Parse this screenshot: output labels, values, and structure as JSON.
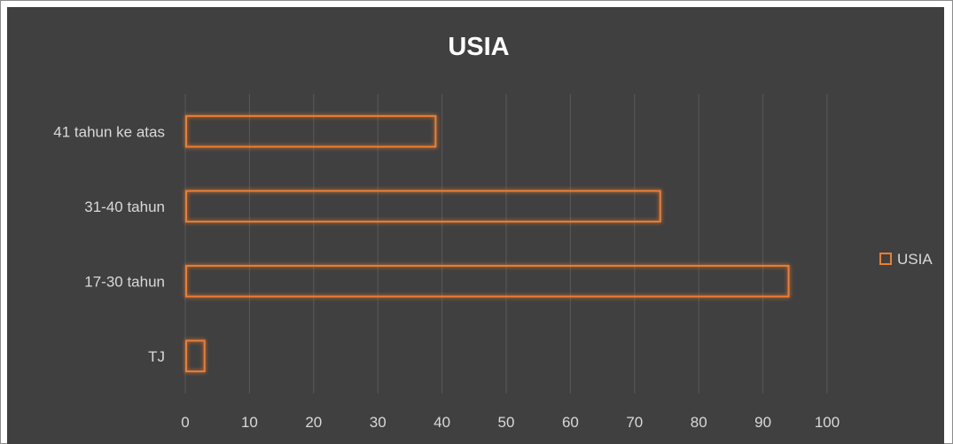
{
  "chart_data": {
    "type": "bar",
    "orientation": "horizontal",
    "title": "USIA",
    "categories": [
      "41 tahun ke atas",
      "31-40 tahun",
      "17-30 tahun",
      "TJ"
    ],
    "series": [
      {
        "name": "USIA",
        "values": [
          39,
          74,
          94,
          3
        ]
      }
    ],
    "xlim": [
      0,
      100
    ],
    "xticks": [
      0,
      10,
      20,
      30,
      40,
      50,
      60,
      70,
      80,
      90,
      100
    ],
    "xticklabels": [
      "0",
      "10",
      "20",
      "30",
      "40",
      "50",
      "60",
      "70",
      "80",
      "90",
      "100"
    ],
    "grid": true,
    "legend": "right",
    "colors": {
      "bar_outline": "#ed7d31",
      "bar_glow": "#c55a11",
      "background": "#404040",
      "gridline": "#595959",
      "text": "#d9d9d9",
      "title": "#ffffff"
    }
  }
}
